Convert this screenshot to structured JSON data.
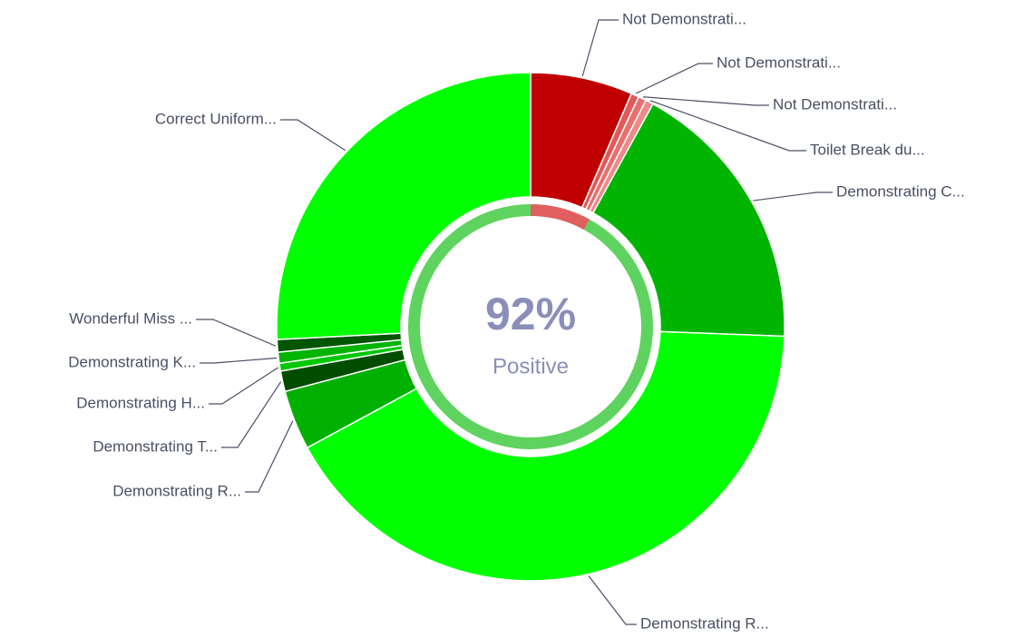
{
  "chart_data": {
    "type": "donut",
    "categories": [
      "Not Demonstrati...",
      "Not Demonstrati...",
      "Not Demonstrati...",
      "Toilet Break du...",
      "Demonstrating C...",
      "Demonstrating R...",
      "Demonstrating R...",
      "Demonstrating T...",
      "Demonstrating H...",
      "Demonstrating K...",
      "Wonderful Miss ...",
      "Correct Uniform..."
    ],
    "values": [
      6.5,
      0.5,
      0.5,
      0.5,
      17.6,
      41.5,
      3.8,
      1.3,
      0.5,
      0.7,
      0.8,
      25.8
    ],
    "colors": [
      "#c00000",
      "#e05a5a",
      "#e86f6f",
      "#f08a8a",
      "#00b400",
      "#00ff00",
      "#00b000",
      "#004d00",
      "#00c800",
      "#00b400",
      "#005500",
      "#00ff00"
    ],
    "center": {
      "value": 92,
      "label": "92%",
      "caption": "Positive",
      "color": "#5fd35f",
      "rest_color": "#e06060"
    }
  }
}
